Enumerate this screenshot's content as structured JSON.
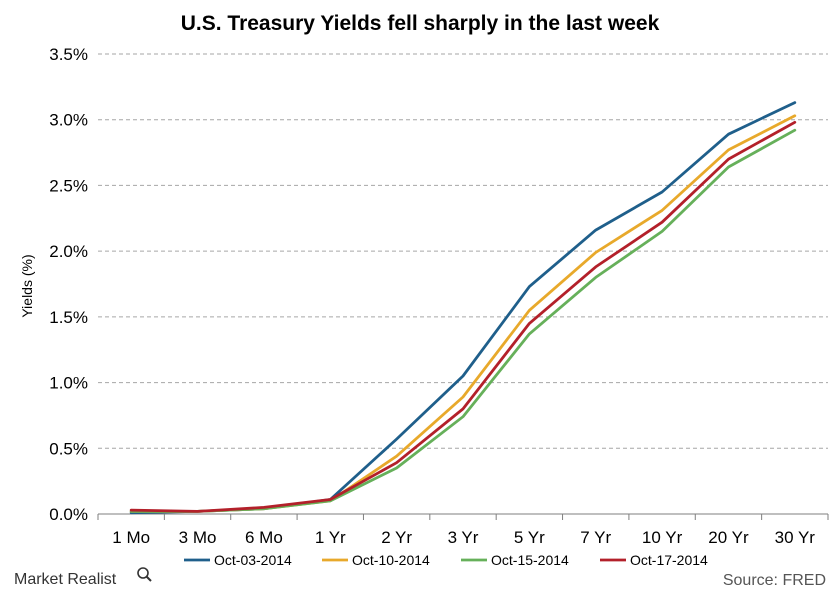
{
  "branding": {
    "name": "Market Realist"
  },
  "source_note": "Source: FRED",
  "colors": {
    "grid": "#a6a6a6",
    "axis": "#7f7f7f",
    "Oct-03-2014": "#1f5f8b",
    "Oct-10-2014": "#e8a92b",
    "Oct-15-2014": "#66b05a",
    "Oct-17-2014": "#b3202a"
  },
  "chart_data": {
    "type": "line",
    "title": "U.S. Treasury Yields fell sharply in the last week",
    "xlabel": "",
    "ylabel": "Yields (%)",
    "categories": [
      "1 Mo",
      "3 Mo",
      "6 Mo",
      "1 Yr",
      "2 Yr",
      "3 Yr",
      "5 Yr",
      "7 Yr",
      "10 Yr",
      "20 Yr",
      "30 Yr"
    ],
    "ylim": [
      0,
      3.5
    ],
    "yticks": [
      "0.0%",
      "0.5%",
      "1.0%",
      "1.5%",
      "2.0%",
      "2.5%",
      "3.0%",
      "3.5%"
    ],
    "ytick_values": [
      0,
      0.5,
      1.0,
      1.5,
      2.0,
      2.5,
      3.0,
      3.5
    ],
    "grid": true,
    "legend_position": "bottom",
    "series": [
      {
        "name": "Oct-03-2014",
        "values": [
          0.01,
          0.02,
          0.04,
          0.11,
          0.57,
          1.05,
          1.73,
          2.16,
          2.45,
          2.89,
          3.13
        ]
      },
      {
        "name": "Oct-10-2014",
        "values": [
          0.02,
          0.02,
          0.04,
          0.1,
          0.44,
          0.89,
          1.55,
          1.99,
          2.31,
          2.77,
          3.03
        ]
      },
      {
        "name": "Oct-15-2014",
        "values": [
          0.02,
          0.02,
          0.04,
          0.1,
          0.35,
          0.74,
          1.37,
          1.8,
          2.15,
          2.64,
          2.92
        ]
      },
      {
        "name": "Oct-17-2014",
        "values": [
          0.03,
          0.02,
          0.05,
          0.11,
          0.39,
          0.8,
          1.45,
          1.88,
          2.22,
          2.7,
          2.98
        ]
      }
    ]
  }
}
